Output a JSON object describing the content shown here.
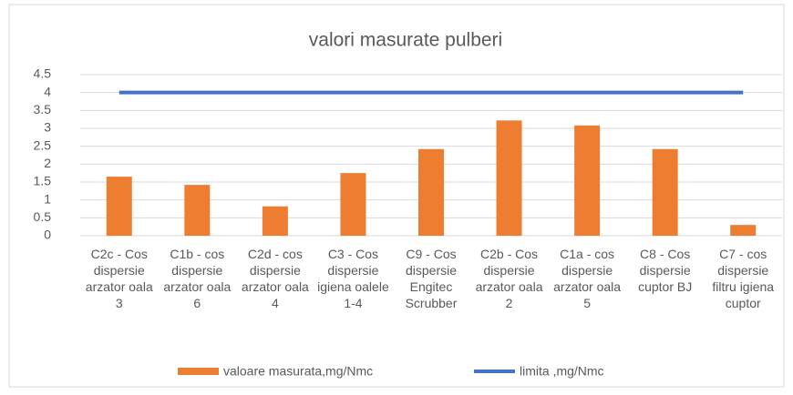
{
  "chart_data": {
    "type": "bar",
    "title": "valori masurate pulberi",
    "categories": [
      "C2c - Cos dispersie arzator oala 3",
      "C1b - cos dispersie arzator oala 6",
      "C2d - cos dispersie arzator oala 4",
      "C3 - Cos dispersie igiena oalele 1-4",
      "C9 - Cos dispersie Engitec Scrubber",
      "C2b - Cos dispersie arzator oala 2",
      "C1a - cos dispersie arzator oala 5",
      "C8 - Cos dispersie cuptor BJ",
      "C7 - cos dispersie filtru igiena cuptor"
    ],
    "series": [
      {
        "name": "valoare masurata,mg/Nmc",
        "type": "bar",
        "color": "#ed7d31",
        "values": [
          1.65,
          1.42,
          0.82,
          1.75,
          2.42,
          3.22,
          3.08,
          2.42,
          0.3
        ]
      },
      {
        "name": "limita ,mg/Nmc",
        "type": "line",
        "color": "#4472c4",
        "values": [
          4,
          4,
          4,
          4,
          4,
          4,
          4,
          4,
          4
        ]
      }
    ],
    "ylim": [
      0,
      4.5
    ],
    "yticks": [
      0,
      0.5,
      1,
      1.5,
      2,
      2.5,
      3,
      3.5,
      4,
      4.5
    ],
    "grid": true,
    "legend": "bottom"
  }
}
